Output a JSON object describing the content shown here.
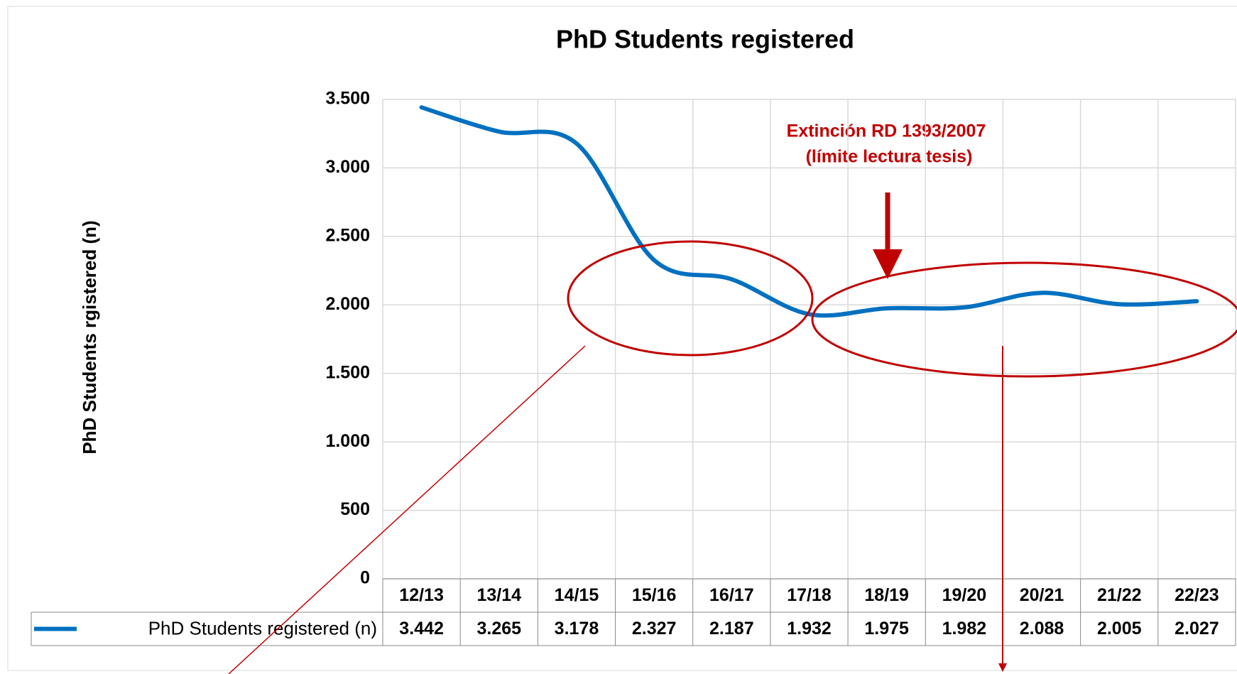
{
  "chart_data": {
    "type": "line",
    "title": "PhD Students registered",
    "y_label": "PhD Students rgistered (n)",
    "categories": [
      "12/13",
      "13/14",
      "14/15",
      "15/16",
      "16/17",
      "17/18",
      "18/19",
      "19/20",
      "20/21",
      "21/22",
      "22/23"
    ],
    "series": [
      {
        "name": "PhD Students registered (n)",
        "color": "#0070c0",
        "values": [
          3442,
          3265,
          3178,
          2327,
          2187,
          1932,
          1975,
          1982,
          2088,
          2005,
          2027
        ],
        "value_labels": [
          "3.442",
          "3.265",
          "3.178",
          "2.327",
          "2.187",
          "1.932",
          "1.975",
          "1.982",
          "2.088",
          "2.005",
          "2.027"
        ]
      }
    ],
    "ylim": [
      0,
      3500
    ],
    "yticks": [
      0,
      500,
      {
        "value": 1000,
        "label": "1.000"
      },
      {
        "value": 1500,
        "label": "1.500"
      },
      {
        "value": 2000,
        "label": "2.000"
      },
      {
        "value": 2500,
        "label": "2.500"
      },
      {
        "value": 3000,
        "label": "3.000"
      },
      {
        "value": 3500,
        "label": "3.500"
      }
    ],
    "grid": true,
    "annotations": [
      "Extinción RD 1393/2007",
      "(límite lectura tesis)"
    ]
  }
}
